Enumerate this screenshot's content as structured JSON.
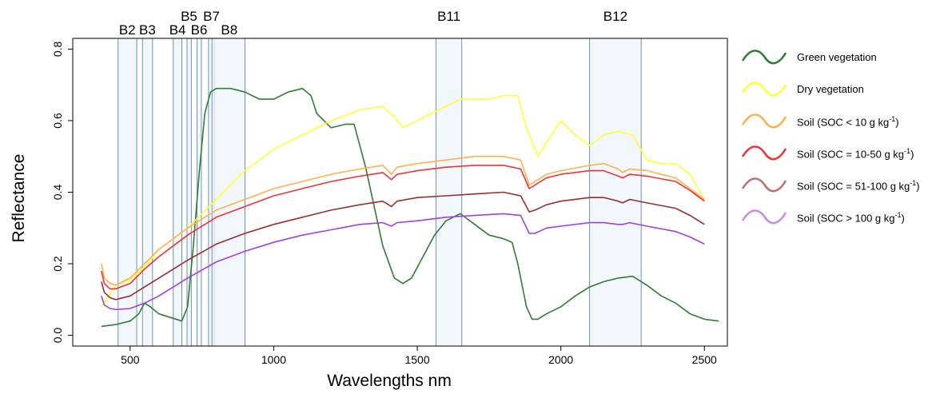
{
  "chart_data": {
    "type": "line",
    "title": "",
    "xlabel": "Wavelengths nm",
    "ylabel": "Reflectance",
    "xlim": [
      300,
      2580
    ],
    "ylim": [
      -0.03,
      0.83
    ],
    "xticks": [
      500,
      1000,
      1500,
      2000,
      2500
    ],
    "yticks": [
      0.0,
      0.2,
      0.4,
      0.6,
      0.8
    ],
    "xtick_labels": [
      "500",
      "1000",
      "1500",
      "2000",
      "2500"
    ],
    "ytick_labels": [
      "0.0",
      "0.2",
      "0.4",
      "0.6",
      "0.8"
    ],
    "grid": false,
    "legend_position": "right",
    "bands": [
      {
        "name": "B2",
        "x0": 458,
        "x1": 523
      },
      {
        "name": "B3",
        "x0": 543,
        "x1": 578
      },
      {
        "name": "B4",
        "x0": 650,
        "x1": 680
      },
      {
        "name": "B5",
        "x0": 698,
        "x1": 713
      },
      {
        "name": "B6",
        "x0": 733,
        "x1": 748
      },
      {
        "name": "B7",
        "x0": 773,
        "x1": 793
      },
      {
        "name": "B8",
        "x0": 785,
        "x1": 900
      },
      {
        "name": "B11",
        "x0": 1565,
        "x1": 1655
      },
      {
        "name": "B12",
        "x0": 2100,
        "x1": 2280
      }
    ],
    "band_label_rows": [
      {
        "name": "B2",
        "row": 1,
        "x": 490
      },
      {
        "name": "B3",
        "row": 1,
        "x": 560
      },
      {
        "name": "B4",
        "row": 1,
        "x": 665
      },
      {
        "name": "B5",
        "row": 0,
        "x": 705
      },
      {
        "name": "B6",
        "row": 1,
        "x": 740
      },
      {
        "name": "B7",
        "row": 0,
        "x": 783
      },
      {
        "name": "B8",
        "row": 1,
        "x": 845
      },
      {
        "name": "B11",
        "row": 0,
        "x": 1610
      },
      {
        "name": "B12",
        "row": 0,
        "x": 2190
      }
    ],
    "series": [
      {
        "name": "Green vegetation",
        "color": "#2e7d32",
        "x": [
          400,
          450,
          500,
          530,
          550,
          570,
          600,
          640,
          680,
          700,
          720,
          740,
          760,
          780,
          800,
          850,
          900,
          950,
          1000,
          1050,
          1100,
          1130,
          1150,
          1200,
          1250,
          1280,
          1320,
          1380,
          1420,
          1450,
          1480,
          1520,
          1560,
          1600,
          1650,
          1700,
          1750,
          1800,
          1830,
          1850,
          1880,
          1900,
          1920,
          1950,
          2000,
          2050,
          2100,
          2150,
          2200,
          2250,
          2300,
          2350,
          2400,
          2450,
          2500,
          2550
        ],
        "y": [
          0.025,
          0.03,
          0.04,
          0.06,
          0.09,
          0.08,
          0.06,
          0.05,
          0.04,
          0.08,
          0.25,
          0.45,
          0.62,
          0.68,
          0.69,
          0.69,
          0.68,
          0.66,
          0.66,
          0.68,
          0.69,
          0.67,
          0.62,
          0.58,
          0.59,
          0.59,
          0.47,
          0.25,
          0.16,
          0.145,
          0.16,
          0.22,
          0.28,
          0.32,
          0.34,
          0.31,
          0.28,
          0.27,
          0.26,
          0.2,
          0.08,
          0.045,
          0.045,
          0.06,
          0.08,
          0.11,
          0.135,
          0.15,
          0.16,
          0.165,
          0.14,
          0.11,
          0.09,
          0.06,
          0.045,
          0.04
        ]
      },
      {
        "name": "Dry vegetation",
        "color": "#ffff33",
        "x": [
          400,
          450,
          500,
          550,
          600,
          700,
          800,
          900,
          1000,
          1100,
          1200,
          1300,
          1380,
          1420,
          1450,
          1500,
          1600,
          1650,
          1700,
          1750,
          1800,
          1850,
          1880,
          1920,
          1950,
          2000,
          2050,
          2100,
          2150,
          2200,
          2250,
          2300,
          2350,
          2400,
          2450,
          2500
        ],
        "y": [
          0.08,
          0.14,
          0.155,
          0.19,
          0.24,
          0.3,
          0.38,
          0.46,
          0.52,
          0.56,
          0.6,
          0.63,
          0.64,
          0.61,
          0.58,
          0.6,
          0.64,
          0.66,
          0.66,
          0.66,
          0.67,
          0.67,
          0.58,
          0.5,
          0.54,
          0.6,
          0.56,
          0.53,
          0.56,
          0.57,
          0.56,
          0.49,
          0.48,
          0.48,
          0.45,
          0.38
        ]
      },
      {
        "name": "Soil (SOC < 10 g kg-1)",
        "color": "#ffb04f",
        "x": [
          400,
          410,
          430,
          450,
          500,
          550,
          600,
          700,
          800,
          900,
          1000,
          1100,
          1200,
          1300,
          1380,
          1410,
          1430,
          1500,
          1600,
          1700,
          1800,
          1860,
          1890,
          1910,
          1950,
          2000,
          2100,
          2150,
          2200,
          2215,
          2240,
          2300,
          2400,
          2450,
          2500
        ],
        "y": [
          0.2,
          0.16,
          0.145,
          0.14,
          0.16,
          0.2,
          0.24,
          0.3,
          0.35,
          0.38,
          0.41,
          0.43,
          0.45,
          0.465,
          0.475,
          0.45,
          0.47,
          0.48,
          0.49,
          0.5,
          0.5,
          0.49,
          0.42,
          0.43,
          0.45,
          0.46,
          0.475,
          0.48,
          0.465,
          0.455,
          0.465,
          0.46,
          0.44,
          0.41,
          0.38
        ]
      },
      {
        "name": "Soil (SOC = 10-50 g kg-1)",
        "color": "#ee3333",
        "x": [
          400,
          410,
          430,
          450,
          500,
          550,
          600,
          700,
          800,
          900,
          1000,
          1100,
          1200,
          1300,
          1380,
          1410,
          1430,
          1500,
          1600,
          1700,
          1800,
          1860,
          1890,
          1910,
          1950,
          2000,
          2100,
          2150,
          2200,
          2215,
          2240,
          2300,
          2400,
          2450,
          2500
        ],
        "y": [
          0.18,
          0.145,
          0.13,
          0.13,
          0.145,
          0.185,
          0.22,
          0.28,
          0.33,
          0.36,
          0.39,
          0.41,
          0.43,
          0.445,
          0.455,
          0.435,
          0.45,
          0.46,
          0.47,
          0.475,
          0.475,
          0.465,
          0.41,
          0.42,
          0.44,
          0.45,
          0.46,
          0.46,
          0.445,
          0.44,
          0.45,
          0.445,
          0.43,
          0.405,
          0.375
        ]
      },
      {
        "name": "Soil (SOC = 51-100 g kg-1)",
        "color": "#9b2d2d",
        "x": [
          400,
          410,
          430,
          450,
          500,
          550,
          600,
          700,
          800,
          900,
          1000,
          1100,
          1200,
          1300,
          1380,
          1410,
          1430,
          1500,
          1600,
          1700,
          1800,
          1860,
          1890,
          1910,
          1950,
          2000,
          2100,
          2150,
          2200,
          2215,
          2240,
          2300,
          2400,
          2450,
          2500
        ],
        "y": [
          0.15,
          0.12,
          0.105,
          0.1,
          0.11,
          0.135,
          0.16,
          0.21,
          0.255,
          0.285,
          0.31,
          0.33,
          0.35,
          0.365,
          0.375,
          0.36,
          0.375,
          0.385,
          0.39,
          0.395,
          0.4,
          0.39,
          0.345,
          0.35,
          0.365,
          0.375,
          0.385,
          0.385,
          0.375,
          0.37,
          0.38,
          0.37,
          0.355,
          0.335,
          0.31
        ]
      },
      {
        "name": "Soil (SOC > 100 g kg-1)",
        "color": "#a040e0",
        "x": [
          400,
          410,
          430,
          450,
          500,
          550,
          600,
          700,
          800,
          900,
          1000,
          1100,
          1200,
          1300,
          1380,
          1410,
          1430,
          1500,
          1600,
          1700,
          1800,
          1860,
          1890,
          1910,
          1950,
          2000,
          2100,
          2150,
          2200,
          2215,
          2240,
          2300,
          2400,
          2450,
          2500
        ],
        "y": [
          0.11,
          0.085,
          0.075,
          0.072,
          0.075,
          0.09,
          0.11,
          0.16,
          0.205,
          0.235,
          0.26,
          0.28,
          0.295,
          0.31,
          0.315,
          0.305,
          0.315,
          0.32,
          0.33,
          0.335,
          0.34,
          0.335,
          0.285,
          0.285,
          0.3,
          0.305,
          0.315,
          0.315,
          0.31,
          0.31,
          0.315,
          0.305,
          0.29,
          0.275,
          0.255
        ]
      }
    ]
  },
  "legend": {
    "items": [
      {
        "label": "Green vegetation",
        "sup": "",
        "tail": "",
        "color": "#2e7d32"
      },
      {
        "label": "Dry vegetation",
        "sup": "",
        "tail": "",
        "color": "#ffff33"
      },
      {
        "label": "Soil (SOC < 10 g kg",
        "sup": "-1",
        "tail": ")",
        "color": "#ffb04f"
      },
      {
        "label": "Soil (SOC = 10-50 g kg",
        "sup": "-1",
        "tail": ")",
        "color": "#ee3333"
      },
      {
        "label": "Soil (SOC = 51-100 g kg",
        "sup": "-1",
        "tail": ")",
        "color": "#c07070"
      },
      {
        "label": "Soil (SOC > 100 g kg",
        "sup": "-1",
        "tail": ")",
        "color": "#cc88e8"
      }
    ]
  }
}
